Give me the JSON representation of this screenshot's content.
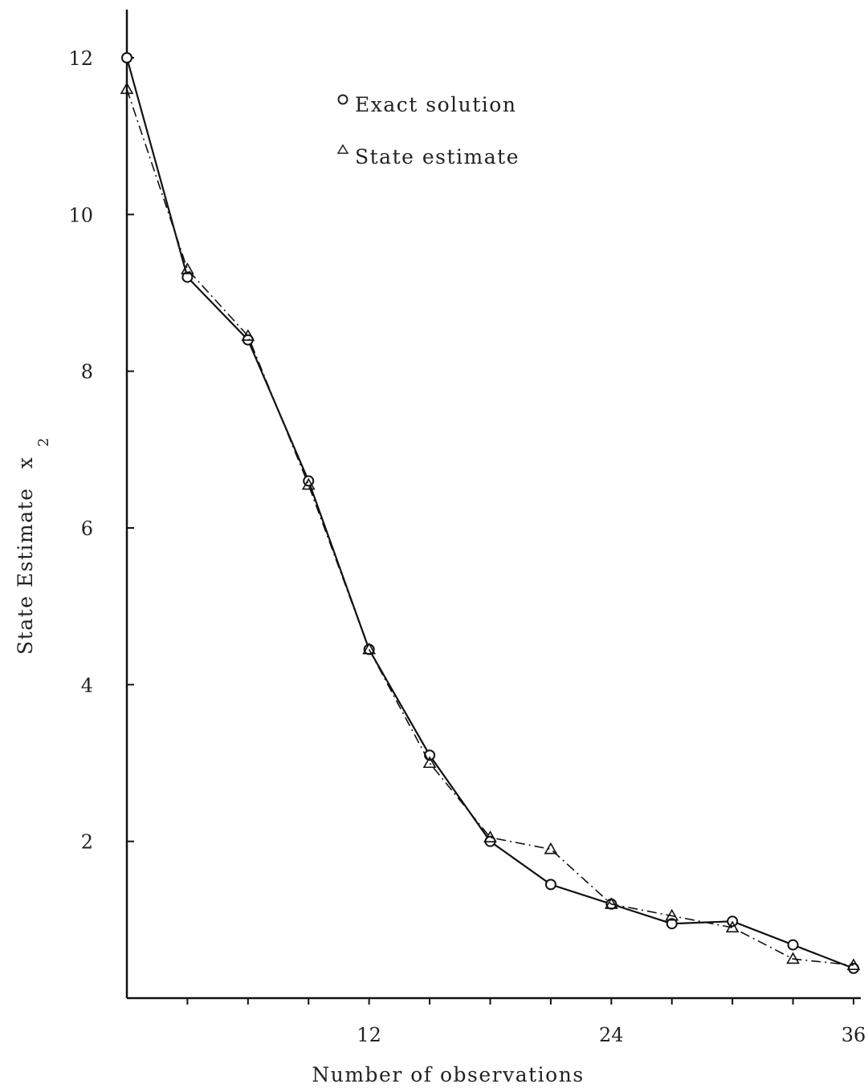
{
  "chart_data": {
    "type": "line",
    "xlabel": "Number of observations",
    "ylabel": "State Estimate",
    "ylabel_var": "x",
    "ylabel_sub": "2",
    "xlim": [
      0,
      36
    ],
    "ylim": [
      0,
      12
    ],
    "x_ticks": [
      12,
      24,
      36
    ],
    "y_ticks": [
      2,
      4,
      6,
      8,
      10,
      12
    ],
    "x_minor_ticks": [
      3,
      6,
      9,
      12,
      15,
      18,
      21,
      24,
      27,
      30,
      33,
      36
    ],
    "grid": false,
    "legend": [
      {
        "label": "Exact solution",
        "marker": "o"
      },
      {
        "label": "State estimate",
        "marker": "Δ"
      }
    ],
    "series": [
      {
        "name": "Exact solution",
        "line_style": "solid",
        "marker": "circle",
        "x": [
          0,
          3,
          6,
          9,
          12,
          15,
          18,
          21,
          24,
          27,
          30,
          33,
          36
        ],
        "y": [
          12.0,
          9.2,
          8.4,
          6.6,
          4.45,
          3.1,
          2.0,
          1.45,
          1.2,
          0.95,
          0.98,
          0.68,
          0.38
        ]
      },
      {
        "name": "State estimate",
        "line_style": "dashdot",
        "marker": "triangle",
        "x": [
          0,
          3,
          6,
          9,
          12,
          15,
          18,
          21,
          24,
          27,
          30,
          33,
          36
        ],
        "y": [
          11.6,
          9.3,
          8.45,
          6.55,
          4.45,
          3.0,
          2.05,
          1.9,
          1.2,
          1.05,
          0.9,
          0.5,
          0.42
        ]
      }
    ]
  }
}
